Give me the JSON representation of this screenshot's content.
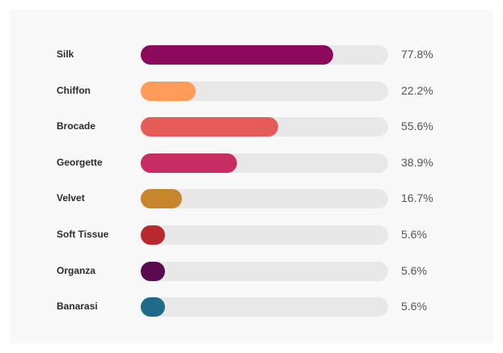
{
  "chart_data": {
    "type": "bar",
    "orientation": "horizontal",
    "categories": [
      "Silk",
      "Chiffon",
      "Brocade",
      "Georgette",
      "Velvet",
      "Soft Tissue",
      "Organza",
      "Banarasi"
    ],
    "values": [
      77.8,
      22.2,
      55.6,
      38.9,
      16.7,
      5.6,
      5.6,
      5.6
    ],
    "value_labels": [
      "77.8%",
      "22.2%",
      "55.6%",
      "38.9%",
      "16.7%",
      "5.6%",
      "5.6%",
      "5.6%"
    ],
    "colors": [
      "#8b0a5c",
      "#ff9c5a",
      "#e55b57",
      "#c72d62",
      "#c8862c",
      "#b8292e",
      "#5a0b4f",
      "#1f6b8c"
    ],
    "track_color": "#e8e8e8",
    "xlim": [
      0,
      100
    ],
    "grid": false,
    "legend": false
  }
}
